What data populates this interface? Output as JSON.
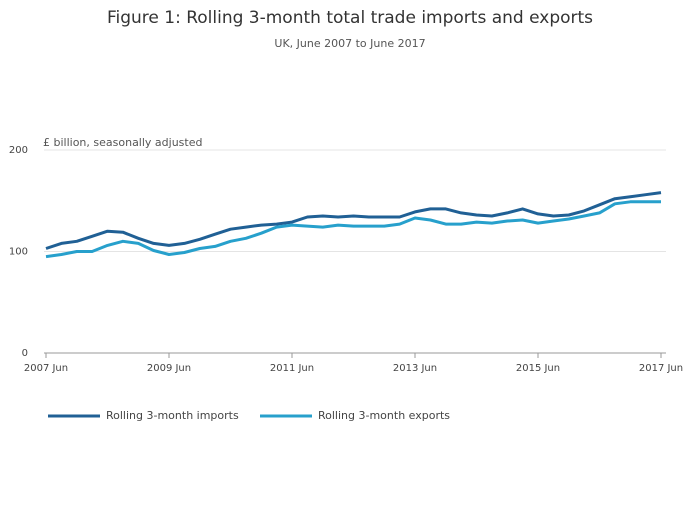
{
  "chart_data": {
    "type": "line",
    "title": "Figure 1: Rolling 3-month total trade imports and exports",
    "subtitle": "UK, June 2007 to June 2017",
    "y_label": "£ billion, seasonally adjusted",
    "x": [
      "2007-06",
      "2007-09",
      "2007-12",
      "2008-03",
      "2008-06",
      "2008-09",
      "2008-12",
      "2009-03",
      "2009-06",
      "2009-09",
      "2009-12",
      "2010-03",
      "2010-06",
      "2010-09",
      "2010-12",
      "2011-03",
      "2011-06",
      "2011-09",
      "2011-12",
      "2012-03",
      "2012-06",
      "2012-09",
      "2012-12",
      "2013-03",
      "2013-06",
      "2013-09",
      "2013-12",
      "2014-03",
      "2014-06",
      "2014-09",
      "2014-12",
      "2015-03",
      "2015-06",
      "2015-09",
      "2015-12",
      "2016-03",
      "2016-06",
      "2016-09",
      "2016-12",
      "2017-03",
      "2017-06"
    ],
    "series": [
      {
        "name": "Rolling 3-month imports",
        "color": "#206095",
        "values": [
          103,
          108,
          110,
          115,
          120,
          119,
          113,
          108,
          106,
          108,
          112,
          117,
          122,
          124,
          126,
          127,
          129,
          134,
          135,
          134,
          135,
          134,
          134,
          134,
          139,
          142,
          142,
          138,
          136,
          135,
          138,
          142,
          137,
          135,
          136,
          140,
          146,
          152,
          154,
          156,
          158
        ]
      },
      {
        "name": "Rolling 3-month exports",
        "color": "#27a0cc",
        "values": [
          95,
          97,
          100,
          100,
          106,
          110,
          108,
          101,
          97,
          99,
          103,
          105,
          110,
          113,
          118,
          124,
          126,
          125,
          124,
          126,
          125,
          125,
          125,
          127,
          133,
          131,
          127,
          127,
          129,
          128,
          130,
          131,
          128,
          130,
          132,
          135,
          138,
          147,
          149,
          149,
          149
        ]
      }
    ],
    "xlim": [
      "2007-06",
      "2017-06"
    ],
    "xticks": [
      {
        "value": "2007-06",
        "label": "2007 Jun"
      },
      {
        "value": "2009-06",
        "label": "2009 Jun"
      },
      {
        "value": "2011-06",
        "label": "2011 Jun"
      },
      {
        "value": "2013-06",
        "label": "2013 Jun"
      },
      {
        "value": "2015-06",
        "label": "2015 Jun"
      },
      {
        "value": "2017-06",
        "label": "2017 Jun"
      }
    ],
    "ylim": [
      0,
      200
    ],
    "yticks": [
      0,
      100,
      200
    ],
    "grid": true,
    "legend": "bottom"
  }
}
